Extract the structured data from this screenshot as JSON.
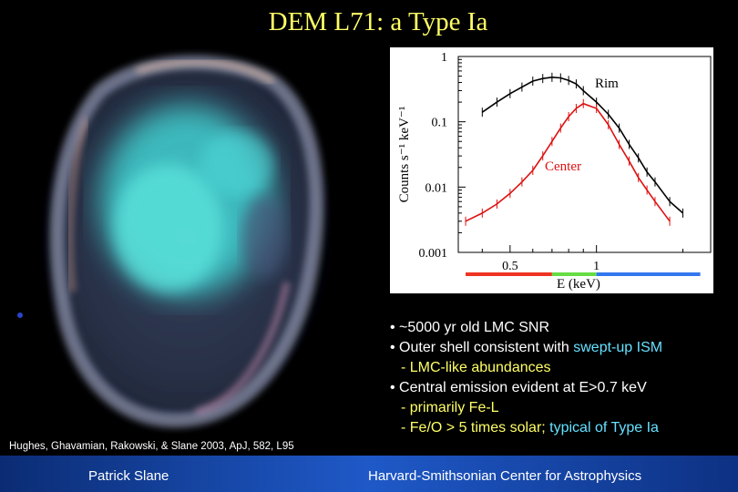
{
  "title": "DEM L71: a Type Ia",
  "chart_data": {
    "type": "line",
    "xlabel": "E (keV)",
    "ylabel": "Counts s⁻¹ keV⁻¹",
    "xscale": "log",
    "yscale": "log",
    "xlim": [
      0.33,
      2.5
    ],
    "ylim": [
      0.001,
      1
    ],
    "x_ticks": [
      "0.5",
      "1"
    ],
    "y_ticks": [
      "1",
      "0.1",
      "0.01",
      "0.001"
    ],
    "annotations": [
      "Rim",
      "Center"
    ],
    "band_colors": [
      "#ee3322",
      "#66dd44",
      "#3377ee"
    ],
    "series": [
      {
        "name": "Rim",
        "color": "#000000",
        "x": [
          0.4,
          0.45,
          0.5,
          0.55,
          0.6,
          0.65,
          0.7,
          0.75,
          0.8,
          0.85,
          0.9,
          1.0,
          1.1,
          1.2,
          1.3,
          1.4,
          1.5,
          1.6,
          1.8,
          2.0
        ],
        "y": [
          0.14,
          0.2,
          0.27,
          0.34,
          0.42,
          0.46,
          0.48,
          0.47,
          0.43,
          0.38,
          0.3,
          0.2,
          0.13,
          0.08,
          0.045,
          0.028,
          0.017,
          0.012,
          0.006,
          0.004
        ]
      },
      {
        "name": "Center",
        "color": "#dd1111",
        "x": [
          0.35,
          0.4,
          0.45,
          0.5,
          0.55,
          0.6,
          0.65,
          0.7,
          0.75,
          0.8,
          0.85,
          0.9,
          1.0,
          1.1,
          1.2,
          1.3,
          1.4,
          1.5,
          1.6,
          1.8
        ],
        "y": [
          0.003,
          0.004,
          0.0055,
          0.008,
          0.012,
          0.018,
          0.03,
          0.05,
          0.08,
          0.12,
          0.16,
          0.19,
          0.16,
          0.09,
          0.045,
          0.025,
          0.014,
          0.009,
          0.006,
          0.003
        ]
      }
    ]
  },
  "bullets": {
    "b1": "• ~5000 yr old LMC SNR",
    "b2_prefix": "• Outer shell consistent with ",
    "b2_highlight": "swept-up ISM",
    "b3": "- LMC-like abundances",
    "b4": "• Central emission evident at E>0.7 keV",
    "b5": "- primarily Fe-L",
    "b6_prefix": "- Fe/O > 5 times solar; ",
    "b6_highlight": "typical of Type Ia"
  },
  "citation": "Hughes, Ghavamian, Rakowski, & Slane 2003, ApJ, 582, L95",
  "footer": {
    "author": "Patrick Slane",
    "institution": "Harvard-Smithsonian Center for Astrophysics"
  }
}
